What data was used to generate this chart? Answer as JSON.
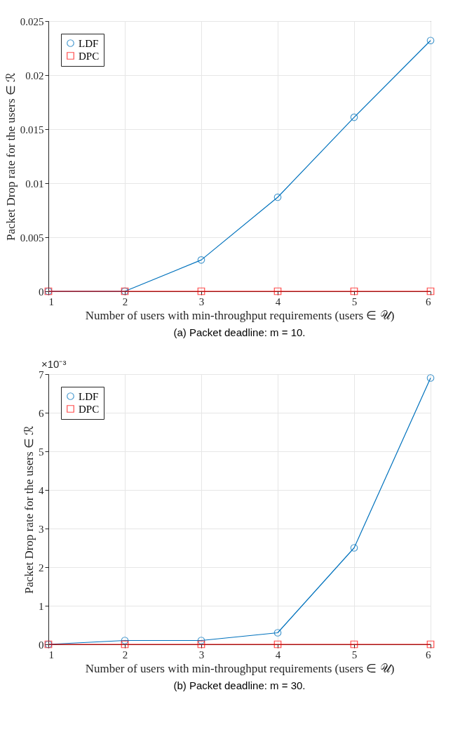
{
  "chart_data": [
    {
      "type": "line",
      "title": "(a) Packet deadline: m = 10.",
      "xlabel": "Number of users with min-throughput requirements (users ∈ 𝒰)",
      "ylabel": "Packet Drop rate for the users ∈ ℛ",
      "x": [
        1,
        2,
        3,
        4,
        5,
        6
      ],
      "series": [
        {
          "name": "LDF",
          "color": "#0072bd",
          "marker": "circle",
          "values": [
            0,
            0,
            0.0029,
            0.0087,
            0.0161,
            0.0232
          ]
        },
        {
          "name": "DPC",
          "color": "#ff0000",
          "marker": "square",
          "values": [
            0,
            0,
            0,
            0,
            0,
            0
          ]
        }
      ],
      "xlim": [
        1,
        6
      ],
      "xticks": [
        1,
        2,
        3,
        4,
        5,
        6
      ],
      "ylim": [
        0,
        0.025
      ],
      "yticks": [
        0,
        0.005,
        0.01,
        0.015,
        0.02,
        0.025
      ],
      "grid": true,
      "legend": "top left"
    },
    {
      "type": "line",
      "title": "(b) Packet deadline: m = 30.",
      "xlabel": "Number of users with min-throughput requirements (users ∈ 𝒰)",
      "ylabel": "Packet Drop rate for the users ∈ ℛ",
      "annotations": [
        "×10⁻³"
      ],
      "x": [
        1,
        2,
        3,
        4,
        5,
        6
      ],
      "series": [
        {
          "name": "LDF",
          "color": "#0072bd",
          "marker": "circle",
          "values": [
            0,
            0.1,
            0.1,
            0.3,
            2.5,
            6.9
          ]
        },
        {
          "name": "DPC",
          "color": "#ff0000",
          "marker": "square",
          "values": [
            0,
            0,
            0,
            0,
            0,
            0
          ]
        }
      ],
      "xlim": [
        1,
        6
      ],
      "xticks": [
        1,
        2,
        3,
        4,
        5,
        6
      ],
      "ylim": [
        0,
        7
      ],
      "yticks": [
        0,
        1,
        2,
        3,
        4,
        5,
        6,
        7
      ],
      "grid": true,
      "legend": "top left"
    }
  ]
}
